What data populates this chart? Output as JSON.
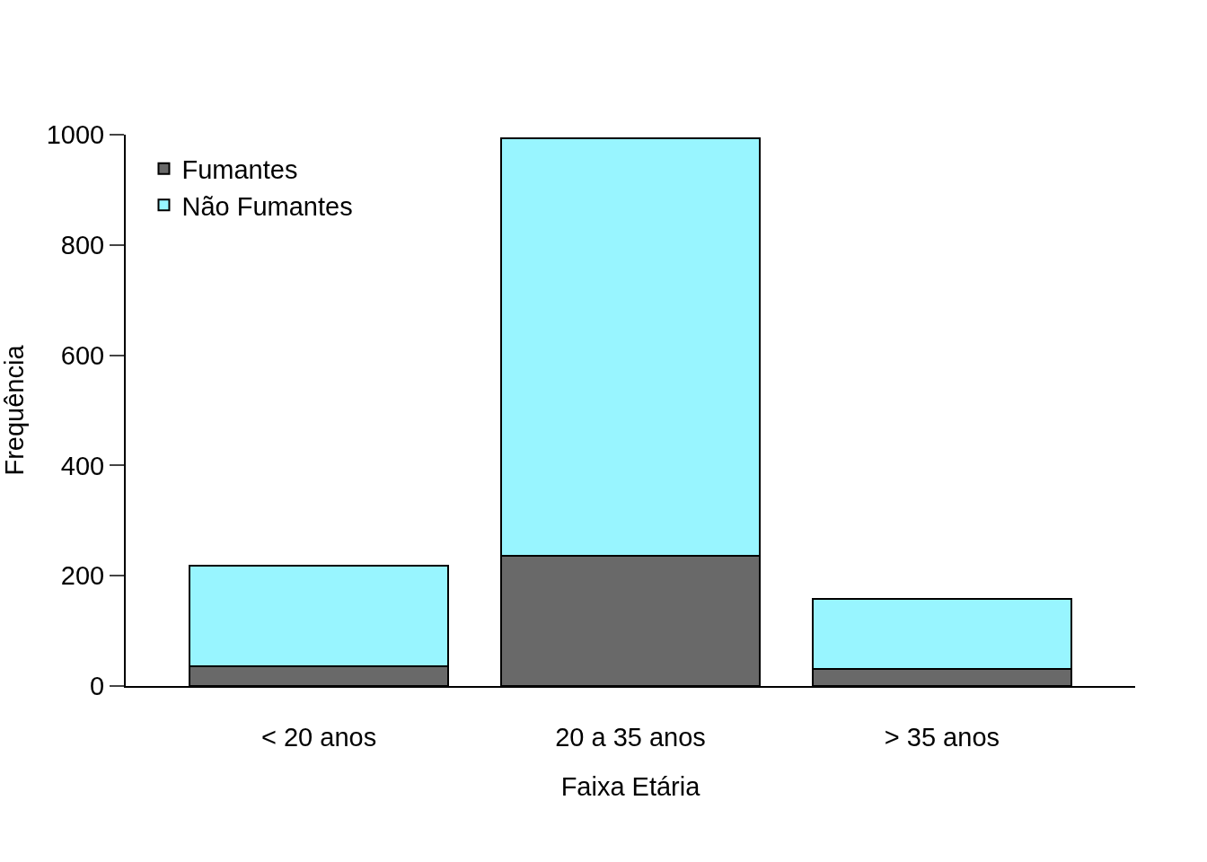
{
  "chart_data": {
    "type": "bar",
    "stacked": true,
    "xlabel": "Faixa Etária",
    "ylabel": "Frequência",
    "categories": [
      "< 20 anos",
      "20 a 35 anos",
      "> 35 anos"
    ],
    "series": [
      {
        "name": "Fumantes",
        "color": "#696969",
        "values": [
          36,
          236,
          31
        ]
      },
      {
        "name": "Não Fumantes",
        "color": "#98f5ff",
        "values": [
          183,
          757,
          127
        ]
      }
    ],
    "ylim": [
      0,
      1000
    ],
    "yticks": [
      0,
      200,
      400,
      600,
      800,
      1000
    ],
    "grid": false,
    "legend": "top left"
  }
}
